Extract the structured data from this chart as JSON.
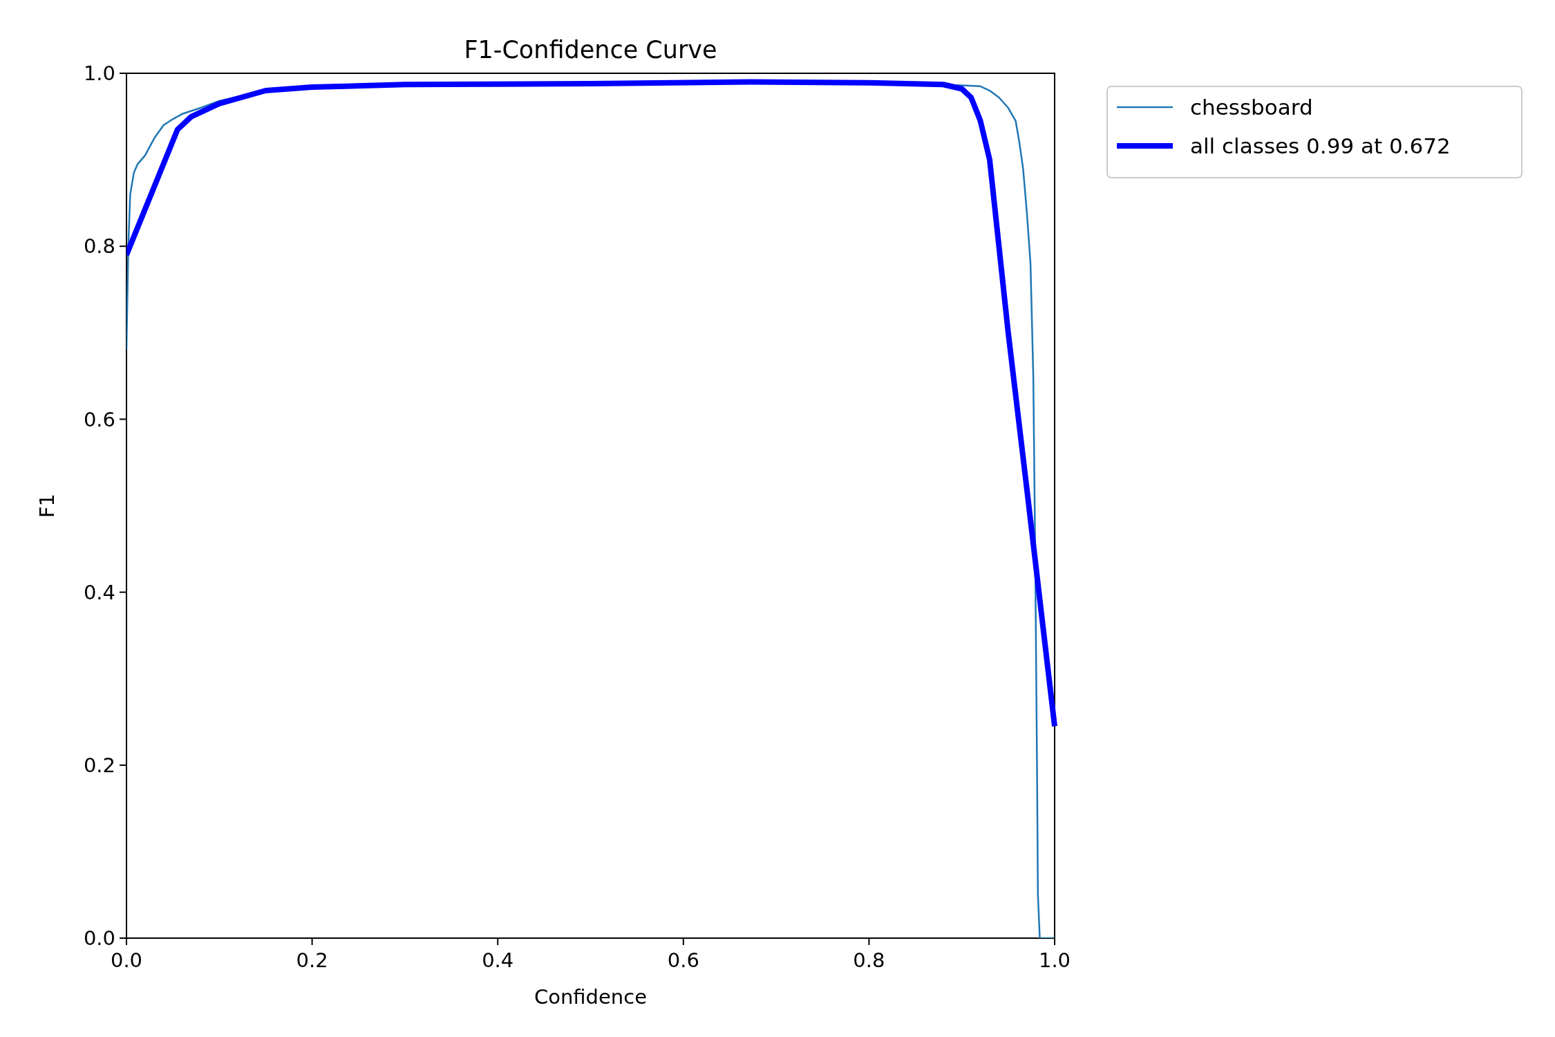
{
  "chart_data": {
    "type": "line",
    "title": "F1-Confidence Curve",
    "xlabel": "Confidence",
    "ylabel": "F1",
    "xlim": [
      0,
      1
    ],
    "ylim": [
      0,
      1
    ],
    "xticks": [
      {
        "value": 0,
        "label": "0.0"
      },
      {
        "value": 0.2,
        "label": "0.2"
      },
      {
        "value": 0.4,
        "label": "0.4"
      },
      {
        "value": 0.6,
        "label": "0.6"
      },
      {
        "value": 0.8,
        "label": "0.8"
      },
      {
        "value": 1,
        "label": "1.0"
      }
    ],
    "yticks": [
      {
        "value": 0,
        "label": "0.0"
      },
      {
        "value": 0.2,
        "label": "0.2"
      },
      {
        "value": 0.4,
        "label": "0.4"
      },
      {
        "value": 0.6,
        "label": "0.6"
      },
      {
        "value": 0.8,
        "label": "0.8"
      },
      {
        "value": 1,
        "label": "1.0"
      }
    ],
    "legend": "top right",
    "grid": false,
    "series": [
      {
        "name": "chessboard",
        "color": "#1f77b4",
        "x": [
          0,
          0.002,
          0.004,
          0.008,
          0.012,
          0.02,
          0.025,
          0.03,
          0.04,
          0.05,
          0.06,
          0.08,
          0.1,
          0.15,
          0.2,
          0.4,
          0.6,
          0.8,
          0.9,
          0.92,
          0.93,
          0.94,
          0.95,
          0.958,
          0.962,
          0.966,
          0.97,
          0.974,
          0.977,
          0.979,
          0.981,
          0.982,
          0.984,
          1.0
        ],
        "values": [
          0.68,
          0.8,
          0.86,
          0.885,
          0.895,
          0.905,
          0.915,
          0.925,
          0.94,
          0.947,
          0.953,
          0.96,
          0.968,
          0.98,
          0.985,
          0.988,
          0.99,
          0.989,
          0.986,
          0.985,
          0.98,
          0.972,
          0.96,
          0.945,
          0.92,
          0.89,
          0.84,
          0.78,
          0.65,
          0.45,
          0.2,
          0.05,
          0,
          0
        ]
      },
      {
        "name": "all classes 0.99 at 0.672",
        "color": "#0000ff",
        "x": [
          0,
          0.055,
          0.07,
          0.1,
          0.15,
          0.2,
          0.3,
          0.5,
          0.672,
          0.8,
          0.88,
          0.9,
          0.91,
          0.92,
          0.93,
          0.95,
          0.97,
          1.0
        ],
        "values": [
          0.79,
          0.935,
          0.95,
          0.965,
          0.98,
          0.984,
          0.987,
          0.988,
          0.99,
          0.989,
          0.987,
          0.982,
          0.972,
          0.945,
          0.9,
          0.7,
          0.52,
          0.245
        ]
      }
    ]
  }
}
